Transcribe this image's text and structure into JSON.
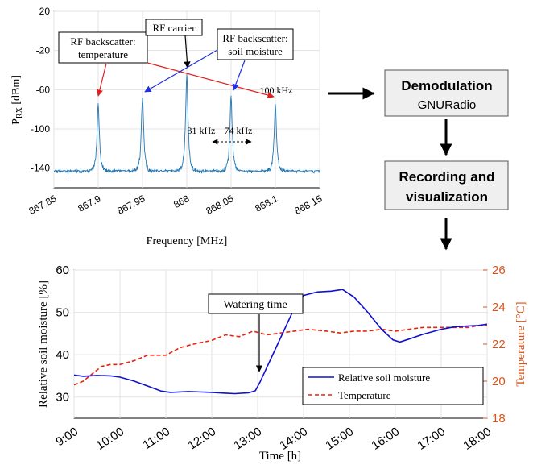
{
  "spectrum": {
    "xlabel": "Frequency [MHz]",
    "ylabel_main": "P",
    "ylabel_sub": "RX",
    "ylabel_unit": " [dBm]",
    "annotations": {
      "backscatter_temp": [
        "RF backscatter:",
        "temperature"
      ],
      "carrier": "RF carrier",
      "backscatter_soil": [
        "RF backscatter:",
        "soil moisture"
      ],
      "khz100": "100 kHz",
      "khz31": "31 kHz",
      "khz74": "74 kHz"
    }
  },
  "flow": {
    "demod_title": "Demodulation",
    "demod_sub": "GNURadio",
    "record_line1": "Recording and",
    "record_line2": "visualization"
  },
  "timeseries": {
    "xlabel": "Time [h]",
    "ylabel_left": "Relative soil moisture [%]",
    "ylabel_right": "Temperature [°C]",
    "annotation": "Watering time",
    "legend": [
      "Relative soil moisture",
      "Temperature"
    ]
  },
  "colors": {
    "spectrum": "#1f77b4",
    "moisture": "#1010d0",
    "temperature": "#e8220f",
    "right_axis": "#d95319",
    "arrow_red": "#e02020",
    "arrow_blue": "#2030e0"
  },
  "chart_data": [
    {
      "type": "line",
      "title": "",
      "xlabel": "Frequency [MHz]",
      "ylabel": "PRX [dBm]",
      "xlim": [
        867.85,
        868.15
      ],
      "ylim": [
        -160,
        20
      ],
      "xticks": [
        "867.85",
        "867.9",
        "867.95",
        "868",
        "868.05",
        "868.1",
        "868.15"
      ],
      "yticks": [
        "20",
        "-20",
        "-60",
        "-100",
        "-140"
      ],
      "grid": true,
      "noise_floor_dbm": -145,
      "peaks": [
        {
          "freq": 867.9,
          "dbm": -75
        },
        {
          "freq": 867.95,
          "dbm": -68
        },
        {
          "freq": 868.0,
          "dbm": -44
        },
        {
          "freq": 868.05,
          "dbm": -68
        },
        {
          "freq": 868.1,
          "dbm": -75
        }
      ]
    },
    {
      "type": "line",
      "title": "",
      "xlabel": "Time [h]",
      "categories": [
        "9:00",
        "10:00",
        "11:00",
        "12:00",
        "13:00",
        "14:00",
        "15:00",
        "16:00",
        "17:00",
        "18:00"
      ],
      "xlim": [
        9,
        18
      ],
      "grid": true,
      "legend_position": "lower-right",
      "axes": {
        "left": {
          "label": "Relative soil moisture [%]",
          "ylim": [
            25,
            60
          ],
          "ticks": [
            30,
            40,
            50,
            60
          ]
        },
        "right": {
          "label": "Temperature [°C]",
          "ylim": [
            18,
            26
          ],
          "ticks": [
            18,
            20,
            22,
            24,
            26
          ]
        }
      },
      "series": [
        {
          "name": "Relative soil moisture",
          "axis": "left",
          "x": [
            9.0,
            9.2,
            9.5,
            9.8,
            10.0,
            10.3,
            10.6,
            10.9,
            11.1,
            11.5,
            12.0,
            12.3,
            12.5,
            12.8,
            12.95,
            13.05,
            13.2,
            13.5,
            13.8,
            14.0,
            14.3,
            14.6,
            14.85,
            15.1,
            15.4,
            15.7,
            15.95,
            16.1,
            16.3,
            16.6,
            17.0,
            17.3,
            17.6,
            17.8,
            18.0
          ],
          "y": [
            35.2,
            34.9,
            35.1,
            35.0,
            34.7,
            33.8,
            32.6,
            31.4,
            31.1,
            31.3,
            31.1,
            30.9,
            30.8,
            31.0,
            31.5,
            33.5,
            37,
            44,
            51,
            54.0,
            54.8,
            55.0,
            55.4,
            53.6,
            50.0,
            46.0,
            43.5,
            43.0,
            43.7,
            44.8,
            46.0,
            46.6,
            46.8,
            46.9,
            47.2
          ]
        },
        {
          "name": "Temperature",
          "axis": "right",
          "x": [
            9.0,
            9.2,
            9.4,
            9.6,
            9.8,
            10.0,
            10.3,
            10.6,
            11.0,
            11.3,
            11.6,
            12.0,
            12.3,
            12.6,
            12.9,
            13.2,
            13.5,
            13.8,
            14.1,
            14.5,
            14.8,
            15.1,
            15.4,
            15.7,
            16.0,
            16.3,
            16.6,
            17.0,
            17.3,
            17.6,
            17.8,
            18.0
          ],
          "y": [
            19.8,
            20.0,
            20.4,
            20.8,
            20.9,
            20.9,
            21.1,
            21.4,
            21.4,
            21.8,
            22.0,
            22.2,
            22.5,
            22.4,
            22.7,
            22.5,
            22.6,
            22.7,
            22.8,
            22.7,
            22.6,
            22.7,
            22.7,
            22.8,
            22.7,
            22.8,
            22.9,
            22.9,
            22.9,
            22.9,
            23.0,
            23.0
          ]
        }
      ]
    }
  ]
}
